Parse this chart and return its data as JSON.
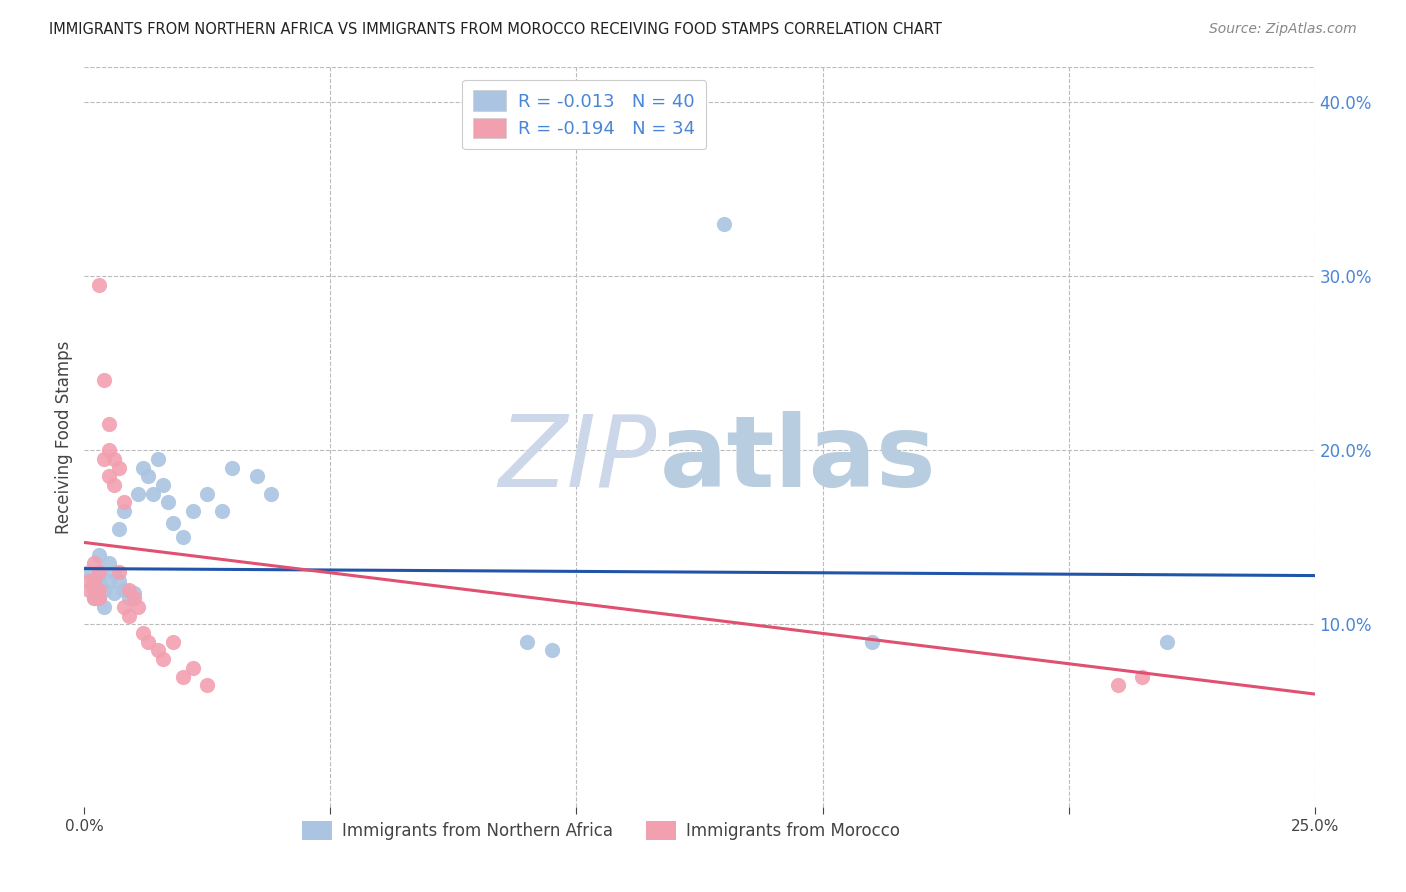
{
  "title": "IMMIGRANTS FROM NORTHERN AFRICA VS IMMIGRANTS FROM MOROCCO RECEIVING FOOD STAMPS CORRELATION CHART",
  "source": "Source: ZipAtlas.com",
  "ylabel_left": "Receiving Food Stamps",
  "x_min": 0.0,
  "x_max": 0.25,
  "y_min": -0.005,
  "y_max": 0.42,
  "right_yticks": [
    0.1,
    0.2,
    0.3,
    0.4
  ],
  "right_yticklabels": [
    "10.0%",
    "20.0%",
    "30.0%",
    "40.0%"
  ],
  "x_ticks": [
    0.0,
    0.05,
    0.1,
    0.15,
    0.2,
    0.25
  ],
  "x_ticklabels": [
    "0.0%",
    "",
    "",
    "",
    "",
    "25.0%"
  ],
  "legend_label_blue": "R = -0.013   N = 40",
  "legend_label_pink": "R = -0.194   N = 34",
  "blue_color": "#aac4e2",
  "pink_color": "#f2a0b0",
  "blue_line_color": "#2255aa",
  "pink_line_color": "#e05070",
  "watermark_zip_color": "#ccd8ea",
  "watermark_atlas_color": "#b8cde0",
  "blue_dots": [
    [
      0.001,
      0.13
    ],
    [
      0.002,
      0.125
    ],
    [
      0.002,
      0.12
    ],
    [
      0.002,
      0.115
    ],
    [
      0.003,
      0.14
    ],
    [
      0.003,
      0.13
    ],
    [
      0.003,
      0.125
    ],
    [
      0.003,
      0.115
    ],
    [
      0.004,
      0.12
    ],
    [
      0.004,
      0.11
    ],
    [
      0.005,
      0.135
    ],
    [
      0.005,
      0.125
    ],
    [
      0.006,
      0.13
    ],
    [
      0.006,
      0.118
    ],
    [
      0.007,
      0.155
    ],
    [
      0.007,
      0.125
    ],
    [
      0.008,
      0.165
    ],
    [
      0.008,
      0.12
    ],
    [
      0.009,
      0.115
    ],
    [
      0.01,
      0.118
    ],
    [
      0.011,
      0.175
    ],
    [
      0.012,
      0.19
    ],
    [
      0.013,
      0.185
    ],
    [
      0.014,
      0.175
    ],
    [
      0.015,
      0.195
    ],
    [
      0.016,
      0.18
    ],
    [
      0.017,
      0.17
    ],
    [
      0.018,
      0.158
    ],
    [
      0.02,
      0.15
    ],
    [
      0.022,
      0.165
    ],
    [
      0.025,
      0.175
    ],
    [
      0.028,
      0.165
    ],
    [
      0.03,
      0.19
    ],
    [
      0.035,
      0.185
    ],
    [
      0.038,
      0.175
    ],
    [
      0.13,
      0.33
    ],
    [
      0.09,
      0.09
    ],
    [
      0.095,
      0.085
    ],
    [
      0.16,
      0.09
    ],
    [
      0.22,
      0.09
    ]
  ],
  "pink_dots": [
    [
      0.001,
      0.125
    ],
    [
      0.001,
      0.12
    ],
    [
      0.002,
      0.135
    ],
    [
      0.002,
      0.125
    ],
    [
      0.002,
      0.115
    ],
    [
      0.003,
      0.13
    ],
    [
      0.003,
      0.12
    ],
    [
      0.003,
      0.115
    ],
    [
      0.003,
      0.295
    ],
    [
      0.004,
      0.24
    ],
    [
      0.004,
      0.195
    ],
    [
      0.005,
      0.215
    ],
    [
      0.005,
      0.2
    ],
    [
      0.005,
      0.185
    ],
    [
      0.006,
      0.195
    ],
    [
      0.006,
      0.18
    ],
    [
      0.007,
      0.19
    ],
    [
      0.007,
      0.13
    ],
    [
      0.008,
      0.17
    ],
    [
      0.008,
      0.11
    ],
    [
      0.009,
      0.12
    ],
    [
      0.009,
      0.105
    ],
    [
      0.01,
      0.115
    ],
    [
      0.011,
      0.11
    ],
    [
      0.012,
      0.095
    ],
    [
      0.013,
      0.09
    ],
    [
      0.015,
      0.085
    ],
    [
      0.016,
      0.08
    ],
    [
      0.018,
      0.09
    ],
    [
      0.02,
      0.07
    ],
    [
      0.022,
      0.075
    ],
    [
      0.025,
      0.065
    ],
    [
      0.21,
      0.065
    ],
    [
      0.215,
      0.07
    ]
  ],
  "blue_trend": {
    "x_start": 0.0,
    "x_end": 0.25,
    "y_start": 0.132,
    "y_end": 0.128
  },
  "pink_trend": {
    "x_start": 0.0,
    "x_end": 0.25,
    "y_start": 0.147,
    "y_end": 0.06
  },
  "background_color": "#ffffff",
  "grid_color": "#bbbbbb",
  "title_color": "#222222",
  "axis_tick_color": "#444444",
  "right_axis_color": "#4a86d8",
  "legend_text_color": "#4a86d8"
}
